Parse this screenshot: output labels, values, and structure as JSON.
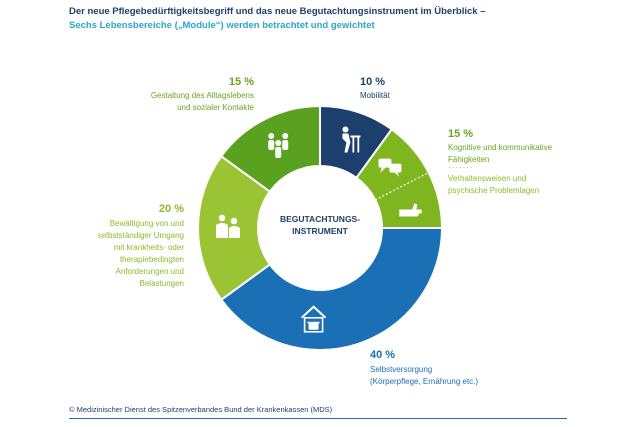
{
  "header": {
    "title": "Der neue Pflegebedürftigkeitsbegriff und das neue Begutachtungsinstrument im Überblick –",
    "subtitle": "Sechs Lebensbereiche („Module“) werden betrachtet und gewichtet"
  },
  "chart_data": {
    "type": "pie",
    "center_label": [
      "BEGUTACHTUNGS-",
      "INSTRUMENT"
    ],
    "series": [
      {
        "percent_label": "10 %",
        "value": 10,
        "label": [
          "Mobilität"
        ],
        "color": "#1c3f6e",
        "icon": "walker-person-icon"
      },
      {
        "percent_label": "15 %",
        "value": 15,
        "label": [
          "Kognitive und kommunikative",
          "Fähigkeiten",
          "Verhaltensweisen und",
          "psychische Problemlagen"
        ],
        "color": "#7fb51f",
        "icon": "speech-bubbles-icon",
        "icon2": "hand-icon"
      },
      {
        "percent_label": "40 %",
        "value": 40,
        "label": [
          "Selbstversorgung",
          "(Körperpflege, Ernährung etc.)"
        ],
        "color": "#1a6fb5",
        "icon": "house-pot-icon"
      },
      {
        "percent_label": "20 %",
        "value": 20,
        "label": [
          "Bewältigung von und",
          "selbstständiger Umgang",
          "mit krankheits- oder",
          "therapiebedingten",
          "Anforderungen und",
          "Belastungen"
        ],
        "color": "#9ac434",
        "icon": "caregiver-icon"
      },
      {
        "percent_label": "15 %",
        "value": 15,
        "label": [
          "Gestaltung des Alltagslebens",
          "und sozialer Kontakte"
        ],
        "color": "#5aa11f",
        "icon": "group-people-icon"
      }
    ]
  },
  "labels": {
    "mob_pct": "10 %",
    "mob_l1": "Mobilität",
    "kog_pct": "15 %",
    "kog_l1": "Kognitive und kommunikative",
    "kog_l2": "Fähigkeiten",
    "kog_dots": "·······",
    "kog_l3": "Verhaltensweisen und",
    "kog_l4": "psychische Problemlagen",
    "selbst_pct": "40 %",
    "selbst_l1": "Selbstversorgung",
    "selbst_l2": "(Körperpflege, Ernährung etc.)",
    "bew_pct": "20 %",
    "bew_l1": "Bewältigung von und",
    "bew_l2": "selbstständiger Umgang",
    "bew_l3": "mit krankheits- oder",
    "bew_l4": "therapiebedingten",
    "bew_l5": "Anforderungen und",
    "bew_l6": "Belastungen",
    "gest_pct": "15 %",
    "gest_l1": "Gestaltung des Alltagslebens",
    "gest_l2": "und sozialer Kontakte"
  },
  "footer": {
    "text": "© Medizinischer Dienst des Spitzenverbandes Bund der Krankenkassen (MDS)"
  }
}
